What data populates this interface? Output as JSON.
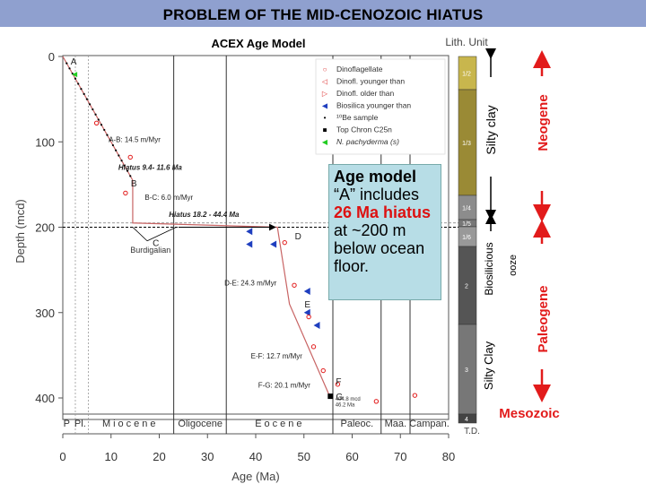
{
  "slide": {
    "title": "PROBLEM OF THE MID-CENOZOIC HIATUS"
  },
  "callout": {
    "line1": "Age model",
    "line2": "“A” includes",
    "line3_hl": "26 Ma hiatus",
    "line4": "at ~200 m",
    "line5": "below ocean",
    "line6": "floor."
  },
  "chart_data": {
    "type": "scatter",
    "title": "ACEX Age Model",
    "xlabel": "Age (Ma)",
    "ylabel": "Depth (mcd)",
    "xlim": [
      0,
      80
    ],
    "ylim": [
      430,
      0
    ],
    "x_ticks": [
      0,
      10,
      20,
      30,
      40,
      50,
      60,
      70,
      80
    ],
    "y_ticks": [
      0,
      100,
      200,
      300,
      400
    ],
    "lith_header": "Lith. Unit",
    "age_model_line": [
      [
        0,
        0
      ],
      [
        14.5,
        145
      ],
      [
        14.5,
        195
      ],
      [
        44.5,
        200
      ],
      [
        47,
        290
      ],
      [
        55.5,
        400
      ]
    ],
    "segment_labels": [
      {
        "text": "A-B: 14.5 m/Myr",
        "x": 9.5,
        "y": 100
      },
      {
        "text": "Hiatus 9.4- 11.6 Ma",
        "x": 11.5,
        "y": 133
      },
      {
        "text": "B-C: 6.0 m/Myr",
        "x": 17,
        "y": 168
      },
      {
        "text": "Hiatus 18.2 - 44.4 Ma",
        "x": 22,
        "y": 188
      },
      {
        "text": "D-E: 24.3 m/Myr",
        "x": 33.5,
        "y": 268
      },
      {
        "text": "E-F: 12.7 m/Myr",
        "x": 39,
        "y": 354
      },
      {
        "text": "F-G: 20.1 m/Myr",
        "x": 40.5,
        "y": 388
      }
    ],
    "points": [
      {
        "label": "A",
        "x": 0.5,
        "y": 5
      },
      {
        "label": "B",
        "x": 13,
        "y": 148
      },
      {
        "label": "C",
        "x": 17.5,
        "y": 218
      },
      {
        "label": "D",
        "x": 47,
        "y": 210
      },
      {
        "label": "E",
        "x": 49,
        "y": 290
      },
      {
        "label": "F",
        "x": 55.5,
        "y": 380
      },
      {
        "label": "G",
        "x": 55.5,
        "y": 398
      }
    ],
    "annotations": [
      {
        "text": "Burdigalian",
        "x": 14,
        "y": 230
      },
      {
        "text": "404.8 mcd",
        "x": 56.5,
        "y": 403
      },
      {
        "text": "46.2 Ma",
        "x": 56.5,
        "y": 410
      }
    ],
    "epochs": [
      "P",
      "Pl.",
      "Miocene",
      "Oligocene",
      "Eocene",
      "Paleoc.",
      "Maa.",
      "Campan."
    ],
    "epoch_boundaries": [
      2.6,
      5.3,
      23,
      33.9,
      56,
      66,
      72
    ],
    "legend": {
      "placement": "top-right",
      "entries": [
        {
          "label": "Dinoflagellate",
          "color": "#d33"
        },
        {
          "label": "Dinofl. younger than",
          "color": "#d33"
        },
        {
          "label": "Dinofl. older than",
          "color": "#d33"
        },
        {
          "label": "Biosilica younger than",
          "color": "#1f3fbf"
        },
        {
          "label": "¹⁰Be sample",
          "color": "#000"
        },
        {
          "label": "Top Chron C25n",
          "color": "#000"
        },
        {
          "label": "N. pachyderma (s)",
          "color": "#2c2"
        }
      ]
    },
    "lith_units": [
      {
        "label": "1/2",
        "color": "#c8b64d"
      },
      {
        "label": "1/3",
        "color": "#9a8a35"
      },
      {
        "label": "1/4",
        "color": "#8c8c8c"
      },
      {
        "label": "1/5",
        "color": "#777"
      },
      {
        "label": "1/6",
        "color": "#999"
      },
      {
        "label": "2",
        "color": "#555"
      },
      {
        "label": "3",
        "color": "#777"
      },
      {
        "label": "4",
        "color": "#444"
      }
    ],
    "lith_footer": "T.D.",
    "side_labels": {
      "silty_clay_top": "Silty clay",
      "biosiliceous_1": "Biosilicious",
      "biosiliceous_2": "ooze",
      "silty_clay_bottom": "Silty Clay",
      "neogene": "Neogene",
      "paleogene": "Paleogene",
      "mesozoic": "Mesozoic"
    },
    "colors": {
      "red": "#e21b1b",
      "blue": "#1f3fbf",
      "line": "#c86464"
    }
  }
}
